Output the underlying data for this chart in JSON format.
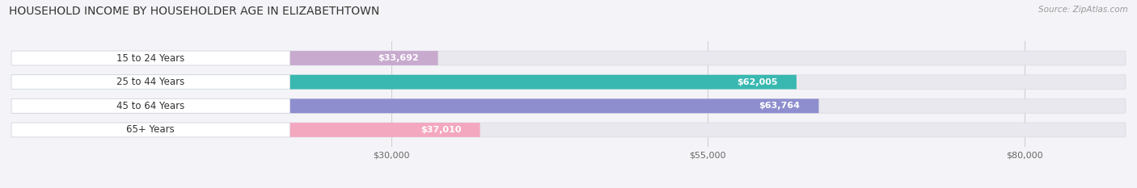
{
  "title": "HOUSEHOLD INCOME BY HOUSEHOLDER AGE IN ELIZABETHTOWN",
  "source": "Source: ZipAtlas.com",
  "categories": [
    "15 to 24 Years",
    "25 to 44 Years",
    "45 to 64 Years",
    "65+ Years"
  ],
  "values": [
    33692,
    62005,
    63764,
    37010
  ],
  "bar_colors": [
    "#c8aacf",
    "#38b8b0",
    "#8e8ecf",
    "#f4a8c0"
  ],
  "bar_bg_color": "#e8e8ee",
  "label_bg_color": "#ffffff",
  "x_ticks": [
    30000,
    55000,
    80000
  ],
  "x_tick_labels": [
    "$30,000",
    "$55,000",
    "$80,000"
  ],
  "x_min": 0,
  "x_max": 88000,
  "figsize": [
    14.06,
    2.33
  ],
  "dpi": 100,
  "label_colors_outside": [
    "#555555",
    "#ffffff",
    "#ffffff",
    "#555555"
  ],
  "value_font_color_inside": "#ffffff",
  "value_font_color_outside": "#555555"
}
